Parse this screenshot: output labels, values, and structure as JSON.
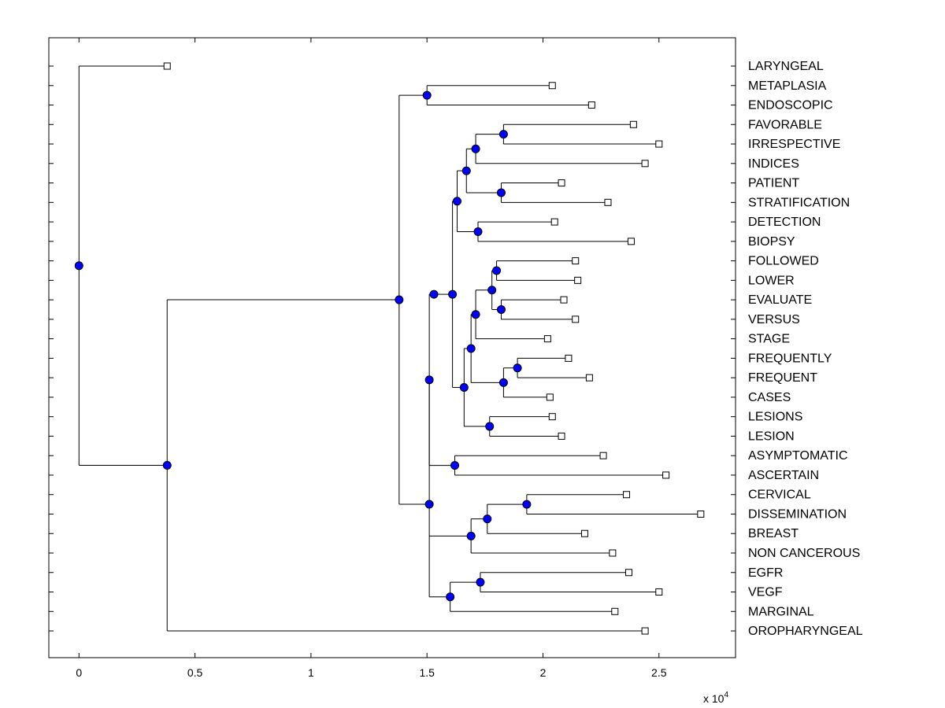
{
  "chart_data": {
    "type": "dendrogram",
    "title": "",
    "xlabel": "",
    "ylabel": "",
    "x_multiplier": "x 10",
    "x_multiplier_exp": "4",
    "xlim": [
      -0.13,
      2.83
    ],
    "xticks": [
      0,
      0.5,
      1,
      1.5,
      2,
      2.5
    ],
    "xtick_labels": [
      "0",
      "0.5",
      "1",
      "1.5",
      "2",
      "2.5"
    ],
    "leaves": [
      {
        "label": "LARYNGEAL",
        "x": 0.38
      },
      {
        "label": "METAPLASIA",
        "x": 2.04
      },
      {
        "label": "ENDOSCOPIC",
        "x": 2.21
      },
      {
        "label": "FAVORABLE",
        "x": 2.39
      },
      {
        "label": "IRRESPECTIVE",
        "x": 2.5
      },
      {
        "label": "INDICES",
        "x": 2.44
      },
      {
        "label": "PATIENT",
        "x": 2.08
      },
      {
        "label": "STRATIFICATION",
        "x": 2.28
      },
      {
        "label": "DETECTION",
        "x": 2.05
      },
      {
        "label": "BIOPSY",
        "x": 2.38
      },
      {
        "label": "FOLLOWED",
        "x": 2.14
      },
      {
        "label": "LOWER",
        "x": 2.15
      },
      {
        "label": "EVALUATE",
        "x": 2.09
      },
      {
        "label": "VERSUS",
        "x": 2.14
      },
      {
        "label": "STAGE",
        "x": 2.02
      },
      {
        "label": "FREQUENTLY",
        "x": 2.11
      },
      {
        "label": "FREQUENT",
        "x": 2.2
      },
      {
        "label": "CASES",
        "x": 2.03
      },
      {
        "label": "LESIONS",
        "x": 2.04
      },
      {
        "label": "LESION",
        "x": 2.08
      },
      {
        "label": "ASYMPTOMATIC",
        "x": 2.26
      },
      {
        "label": "ASCERTAIN",
        "x": 2.53
      },
      {
        "label": "CERVICAL",
        "x": 2.36
      },
      {
        "label": "DISSEMINATION",
        "x": 2.68
      },
      {
        "label": "BREAST",
        "x": 2.18
      },
      {
        "label": "NON CANCEROUS",
        "x": 2.3
      },
      {
        "label": "EGFR",
        "x": 2.37
      },
      {
        "label": "VEGF",
        "x": 2.5
      },
      {
        "label": "MARGINAL",
        "x": 2.31
      },
      {
        "label": "OROPHARYNGEAL",
        "x": 2.44
      }
    ],
    "nodes": [
      {
        "id": "n1",
        "x": 1.5,
        "children": [
          "L1",
          "L2"
        ]
      },
      {
        "id": "n2",
        "x": 1.83,
        "children": [
          "L3",
          "L4"
        ]
      },
      {
        "id": "n3",
        "x": 1.71,
        "children": [
          "n2",
          "L5"
        ]
      },
      {
        "id": "n4",
        "x": 1.82,
        "children": [
          "L6",
          "L7"
        ]
      },
      {
        "id": "n5",
        "x": 1.67,
        "children": [
          "n3",
          "n4"
        ]
      },
      {
        "id": "n6",
        "x": 1.72,
        "children": [
          "L8",
          "L9"
        ]
      },
      {
        "id": "n7",
        "x": 1.63,
        "children": [
          "n5",
          "n6"
        ]
      },
      {
        "id": "n8",
        "x": 1.8,
        "children": [
          "L10",
          "L11"
        ]
      },
      {
        "id": "n9",
        "x": 1.82,
        "children": [
          "L12",
          "L13"
        ]
      },
      {
        "id": "n10",
        "x": 1.78,
        "children": [
          "n8",
          "n9"
        ]
      },
      {
        "id": "n11",
        "x": 1.71,
        "children": [
          "n10",
          "L14"
        ]
      },
      {
        "id": "n12",
        "x": 1.89,
        "children": [
          "L15",
          "L16"
        ]
      },
      {
        "id": "n13",
        "x": 1.83,
        "children": [
          "n12",
          "L17"
        ]
      },
      {
        "id": "n14",
        "x": 1.69,
        "children": [
          "n11",
          "n13"
        ]
      },
      {
        "id": "n15",
        "x": 1.77,
        "children": [
          "L18",
          "L19"
        ]
      },
      {
        "id": "n16",
        "x": 1.66,
        "children": [
          "n14",
          "n15"
        ]
      },
      {
        "id": "n17",
        "x": 1.61,
        "children": [
          "n7",
          "n16"
        ]
      },
      {
        "id": "n18",
        "x": 1.53,
        "children": [
          "n17"
        ],
        "stem_from": 1.51
      },
      {
        "id": "n19",
        "x": 1.62,
        "children": [
          "L20",
          "L21"
        ]
      },
      {
        "id": "n20",
        "x": 1.51,
        "children": [
          "n18",
          "n19"
        ]
      },
      {
        "id": "n21",
        "x": 1.93,
        "children": [
          "L22",
          "L23"
        ]
      },
      {
        "id": "n22",
        "x": 1.76,
        "children": [
          "n21",
          "L24"
        ]
      },
      {
        "id": "n23",
        "x": 1.69,
        "children": [
          "n22",
          "L25"
        ]
      },
      {
        "id": "n24",
        "x": 1.73,
        "children": [
          "L26",
          "L27"
        ]
      },
      {
        "id": "n25",
        "x": 1.6,
        "children": [
          "n24",
          "L28"
        ]
      },
      {
        "id": "n26",
        "x": 1.51,
        "children": [
          "n20",
          "n23",
          "n25"
        ]
      },
      {
        "id": "n27",
        "x": 1.38,
        "children": [
          "n1",
          "n26"
        ]
      },
      {
        "id": "n28",
        "x": 0.38,
        "children": [
          "n27",
          "L29"
        ]
      },
      {
        "id": "n29",
        "x": 0.0,
        "children": [
          "L0",
          "n28"
        ]
      }
    ]
  },
  "colors": {
    "node_fill": "#0000ff",
    "line": "#000000",
    "leaf_fill": "#ffffff",
    "background": "#ffffff"
  }
}
